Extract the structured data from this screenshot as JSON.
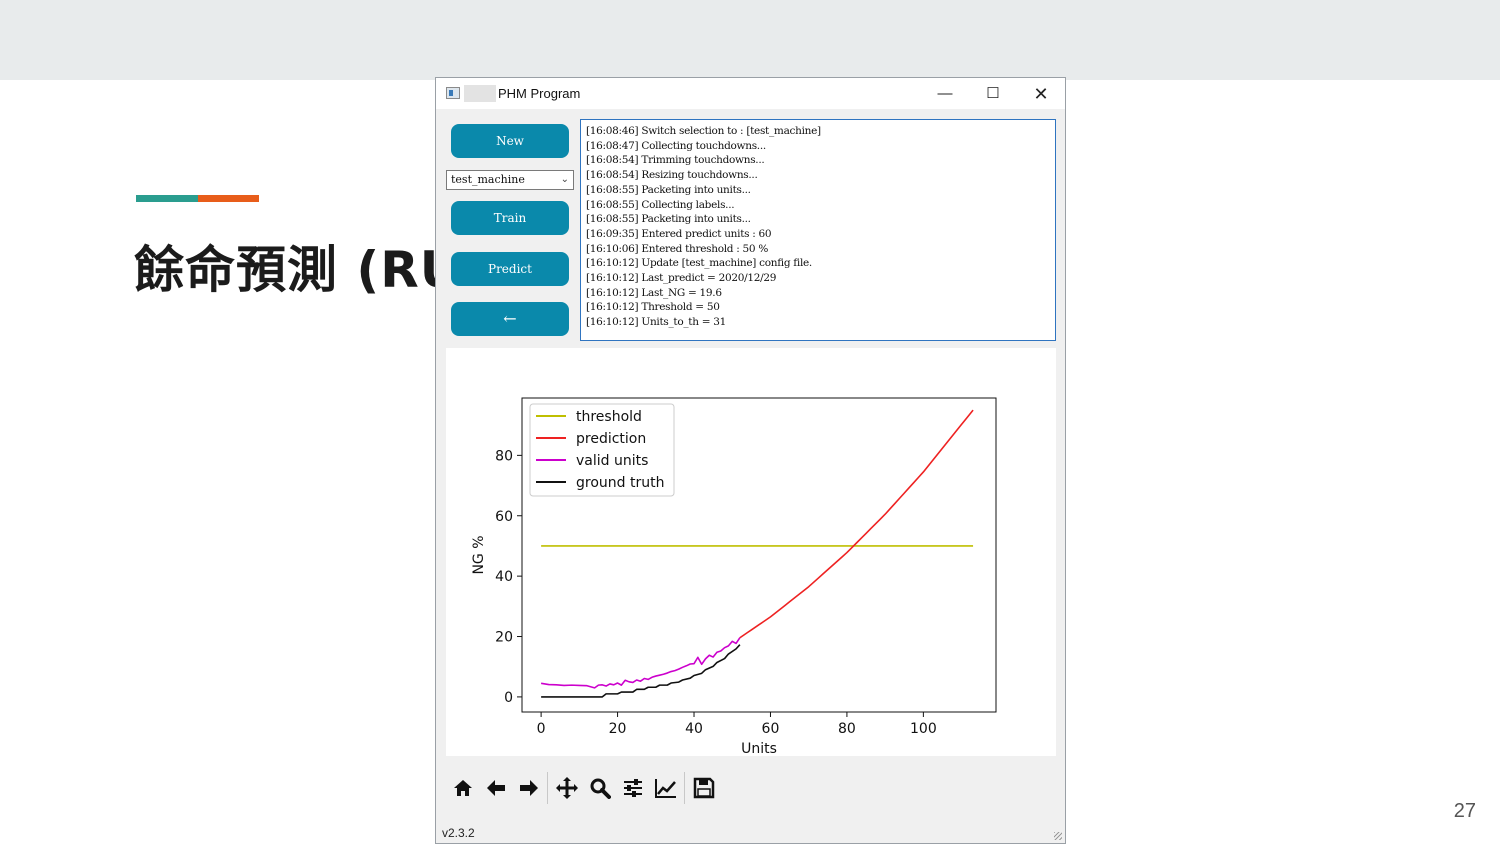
{
  "slide": {
    "title": "餘命預測 (RU",
    "page_number": "27",
    "accent_colors": [
      "#2a9d8f",
      "#e85d1a"
    ]
  },
  "window": {
    "title": "PHM Program",
    "minimize": "—",
    "maximize": "☐",
    "close": "✕"
  },
  "sidebar": {
    "new_label": "New",
    "machine_select_value": "test_machine",
    "train_label": "Train",
    "predict_label": "Predict",
    "back_label": "←",
    "button_color": "#0a89ab"
  },
  "log": [
    "[16:08:46] Switch selection to : [test_machine]",
    "[16:08:47] Collecting touchdowns...",
    "[16:08:54] Trimming touchdowns...",
    "[16:08:54] Resizing touchdowns...",
    "[16:08:55] Packeting into units...",
    "[16:08:55] Collecting labels...",
    "[16:08:55] Packeting into units...",
    "[16:09:35] Entered predict units : 60",
    "[16:10:06] Entered threshold : 50 %",
    "[16:10:12] Update [test_machine] config file.",
    "[16:10:12] Last_predict = 2020/12/29",
    "[16:10:12] Last_NG = 19.6",
    "[16:10:12] Threshold = 50",
    "[16:10:12] Units_to_th = 31"
  ],
  "toolbar": {
    "icons": [
      "home-icon",
      "back-arrow-icon",
      "forward-arrow-icon",
      "pan-icon",
      "zoom-icon",
      "configure-subplots-icon",
      "edit-axis-icon",
      "save-icon"
    ],
    "version": "v2.3.2"
  },
  "chart_data": {
    "type": "line",
    "xlabel": "Units",
    "ylabel": "NG %",
    "xlim": [
      -5,
      119
    ],
    "ylim": [
      -5,
      99
    ],
    "xticks": [
      0,
      20,
      40,
      60,
      80,
      100
    ],
    "yticks": [
      0,
      20,
      40,
      60,
      80
    ],
    "legend_position": "top-left",
    "series": [
      {
        "name": "threshold",
        "color": "#bfbf00",
        "x": [
          0,
          113
        ],
        "y": [
          50,
          50
        ]
      },
      {
        "name": "prediction",
        "color": "#ee2222",
        "x": [
          52,
          60,
          70,
          80,
          90,
          100,
          113
        ],
        "y": [
          19.6,
          26.5,
          36.5,
          47.8,
          60.5,
          74.5,
          95
        ]
      },
      {
        "name": "valid units",
        "color": "#cc00cc",
        "x": [
          0,
          2,
          4,
          6,
          8,
          10,
          12,
          14,
          15,
          16,
          17,
          18,
          19,
          20,
          21,
          22,
          23,
          24,
          25,
          26,
          27,
          28,
          29,
          30,
          31,
          32,
          33,
          34,
          35,
          36,
          37,
          38,
          39,
          40,
          41,
          42,
          43,
          44,
          45,
          46,
          47,
          48,
          49,
          50,
          51,
          52
        ],
        "y": [
          4.5,
          4.1,
          4.0,
          3.8,
          3.9,
          3.8,
          3.7,
          3.0,
          3.9,
          4.0,
          3.6,
          4.3,
          4.0,
          4.6,
          3.9,
          5.5,
          5.0,
          4.8,
          5.6,
          5.2,
          6.1,
          5.8,
          6.5,
          6.9,
          7.2,
          7.5,
          7.9,
          8.4,
          8.7,
          9.2,
          9.8,
          10.3,
          10.9,
          11.0,
          13.1,
          10.8,
          12.6,
          13.8,
          13.2,
          14.8,
          15.2,
          16.3,
          16.9,
          18.4,
          17.7,
          19.6
        ]
      },
      {
        "name": "ground truth",
        "color": "#111111",
        "x": [
          0,
          16,
          17,
          20,
          21,
          24,
          25,
          27,
          28,
          30,
          31,
          33,
          34,
          36,
          37,
          39,
          40,
          42,
          43,
          45,
          46,
          48,
          49,
          51,
          52
        ],
        "y": [
          0,
          0,
          1,
          1,
          1.6,
          1.6,
          2.5,
          2.5,
          3.2,
          3.2,
          3.9,
          3.9,
          4.6,
          4.9,
          5.6,
          6.2,
          7.1,
          7.8,
          9.0,
          10.1,
          11.4,
          12.7,
          14.2,
          15.9,
          17.3
        ]
      }
    ]
  }
}
